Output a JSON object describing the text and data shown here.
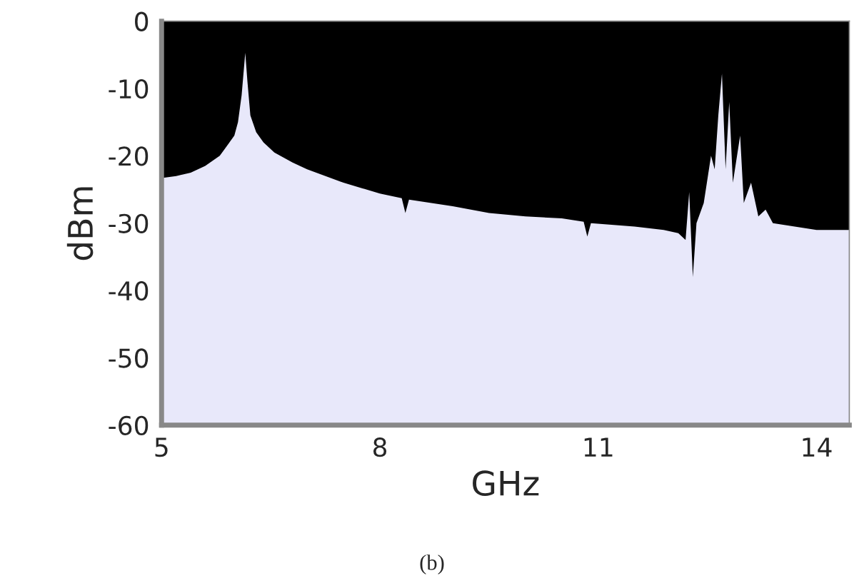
{
  "chart_data": {
    "type": "area",
    "xlabel": "GHz",
    "ylabel": "dBm",
    "annotations": [
      "(b)"
    ],
    "x": [
      5.0,
      5.2,
      5.4,
      5.6,
      5.8,
      5.9,
      6.0,
      6.05,
      6.1,
      6.15,
      6.18,
      6.22,
      6.3,
      6.4,
      6.55,
      6.8,
      7.0,
      7.5,
      8.0,
      8.3,
      8.35,
      8.4,
      9.0,
      9.5,
      10.0,
      10.5,
      10.8,
      10.85,
      10.9,
      11.5,
      11.9,
      12.1,
      12.2,
      12.25,
      12.3,
      12.35,
      12.45,
      12.55,
      12.6,
      12.65,
      12.7,
      12.75,
      12.8,
      12.85,
      12.95,
      13.0,
      13.1,
      13.2,
      13.3,
      13.4,
      13.7,
      14.0,
      14.45
    ],
    "series": [
      {
        "color": "#000000",
        "values": [
          -23.3,
          -23,
          -22.5,
          -21.5,
          -20,
          -18.5,
          -17,
          -15,
          -11,
          -4.7,
          -9,
          -14,
          -16.5,
          -18,
          -19.5,
          -21,
          -22,
          -24,
          -25.6,
          -26.3,
          -28.5,
          -26.5,
          -27.5,
          -28.5,
          -29,
          -29.3,
          -29.8,
          -32,
          -30,
          -30.5,
          -31,
          -31.5,
          -32.5,
          -25.4,
          -38,
          -30,
          -27,
          -20,
          -22,
          -14,
          -7.8,
          -22,
          -12,
          -24,
          -17,
          -27,
          -24,
          -29,
          -28,
          -30,
          -30.5,
          -31,
          -31
        ]
      }
    ],
    "xlim": [
      5,
      14.45
    ],
    "ylim": [
      -60,
      0
    ],
    "xticks": [
      5,
      8,
      11,
      14
    ],
    "yticks": [
      0,
      -10,
      -20,
      -30,
      -40,
      -50,
      -60
    ],
    "grid": false
  }
}
